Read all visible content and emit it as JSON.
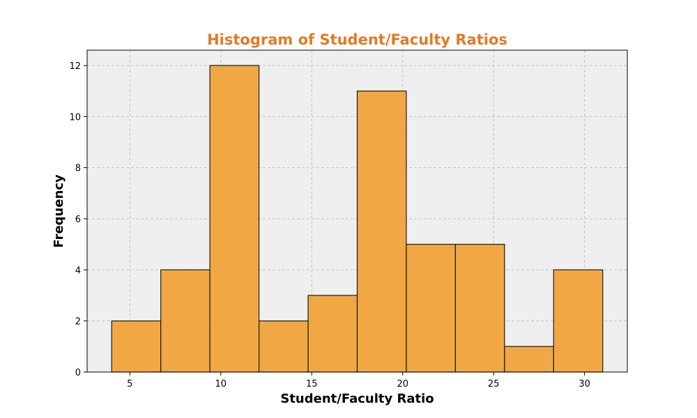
{
  "chart_data": {
    "type": "bar",
    "title": "Histogram of Student/Faculty Ratios",
    "xlabel": "Student/Faculty Ratio",
    "ylabel": "Frequency",
    "bins": [
      {
        "start": 4.0,
        "end": 6.7,
        "count": 2
      },
      {
        "start": 6.7,
        "end": 9.4,
        "count": 4
      },
      {
        "start": 9.4,
        "end": 12.1,
        "count": 12
      },
      {
        "start": 12.1,
        "end": 14.8,
        "count": 2
      },
      {
        "start": 14.8,
        "end": 17.5,
        "count": 3
      },
      {
        "start": 17.5,
        "end": 20.2,
        "count": 11
      },
      {
        "start": 20.2,
        "end": 22.9,
        "count": 5
      },
      {
        "start": 22.9,
        "end": 25.6,
        "count": 5
      },
      {
        "start": 25.6,
        "end": 28.3,
        "count": 1
      },
      {
        "start": 28.3,
        "end": 31.0,
        "count": 4
      }
    ],
    "xlim": [
      2.65,
      32.35
    ],
    "ylim": [
      0,
      12.6
    ],
    "xticks": [
      5,
      10,
      15,
      20,
      25,
      30
    ],
    "yticks": [
      0,
      2,
      4,
      6,
      8,
      10,
      12
    ],
    "grid": true,
    "colors": {
      "bar_fill": "#f0a33a",
      "bar_edge": "#1a1a1a",
      "axes_background": "#efefef",
      "title": "#e07b24"
    }
  }
}
